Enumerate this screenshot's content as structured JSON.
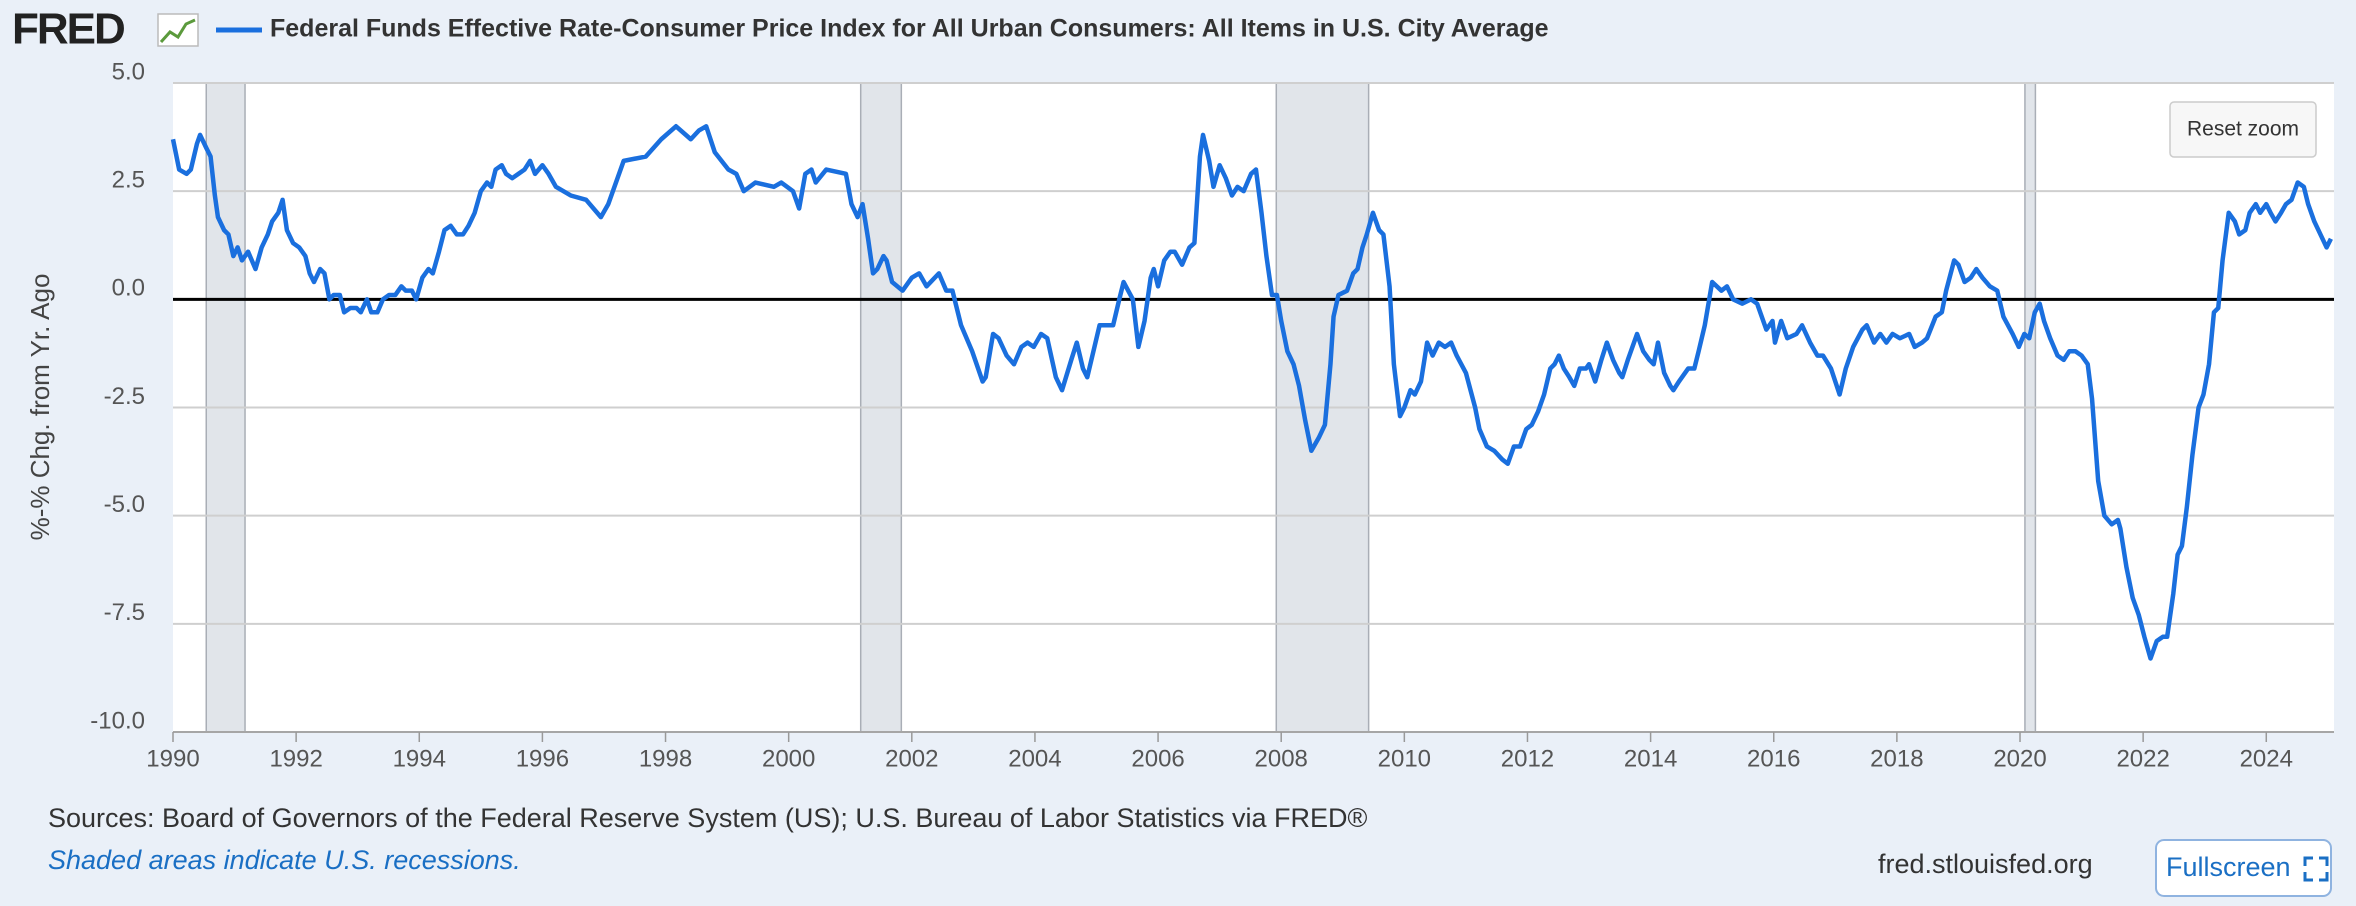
{
  "chart_data": {
    "type": "line",
    "logo": "FRED",
    "y_label": "%-% Chg. from Yr. Ago",
    "sources": "Sources: Board of Governors of the Federal Reserve System (US); U.S. Bureau of Labor Statistics via FRED®",
    "note": "Shaded areas indicate U.S. recessions.",
    "site": "fred.stlouisfed.org",
    "reset_button": "Reset zoom",
    "fullscreen_button": "Fullscreen",
    "grid": true,
    "zero_line": true,
    "recession_color": "#e1e5ea",
    "recessions": [
      [
        1990.54,
        1991.17
      ],
      [
        2001.17,
        2001.83
      ],
      [
        2007.92,
        2009.42
      ],
      [
        2020.08,
        2020.25
      ]
    ],
    "xlim": [
      1990,
      2025.1
    ],
    "xticks": [
      1990,
      1992,
      1994,
      1996,
      1998,
      2000,
      2002,
      2004,
      2006,
      2008,
      2010,
      2012,
      2014,
      2016,
      2018,
      2020,
      2022,
      2024
    ],
    "ylim": [
      -10,
      5
    ],
    "yticks": [
      {
        "value": 5,
        "label": "5.0"
      },
      {
        "value": 2.5,
        "label": "2.5"
      },
      {
        "value": 0,
        "label": "0.0"
      },
      {
        "value": -2.5,
        "label": "-2.5"
      },
      {
        "value": -5,
        "label": "-5.0"
      },
      {
        "value": -7.5,
        "label": "-7.5"
      },
      {
        "value": -10,
        "label": "-10.0"
      }
    ],
    "x": [
      1990.0,
      1990.1,
      1990.22,
      1990.29,
      1990.39,
      1990.44,
      1990.54,
      1990.61,
      1990.68,
      1990.73,
      1990.83,
      1990.9,
      1990.98,
      1991.05,
      1991.12,
      1991.22,
      1991.34,
      1991.44,
      1991.54,
      1991.61,
      1991.71,
      1991.78,
      1991.85,
      1991.95,
      1992.05,
      1992.15,
      1992.22,
      1992.29,
      1992.39,
      1992.46,
      1992.54,
      1992.61,
      1992.71,
      1992.78,
      1992.88,
      1992.98,
      1993.05,
      1993.15,
      1993.22,
      1993.32,
      1993.41,
      1993.51,
      1993.61,
      1993.71,
      1993.78,
      1993.88,
      1993.95,
      1994.05,
      1994.15,
      1994.22,
      1994.32,
      1994.41,
      1994.51,
      1994.61,
      1994.71,
      1994.8,
      1994.9,
      1995.0,
      1995.1,
      1995.17,
      1995.24,
      1995.34,
      1995.41,
      1995.51,
      1995.61,
      1995.71,
      1995.8,
      1995.88,
      1996.0,
      1996.1,
      1996.22,
      1996.46,
      1996.71,
      1996.95,
      1997.07,
      1997.32,
      1997.68,
      1997.93,
      1998.17,
      1998.41,
      1998.54,
      1998.66,
      1998.8,
      1999.02,
      1999.15,
      1999.27,
      1999.46,
      1999.76,
      1999.88,
      2000.07,
      2000.17,
      2000.27,
      2000.37,
      2000.44,
      2000.61,
      2000.93,
      2001.02,
      2001.12,
      2001.2,
      2001.29,
      2001.37,
      2001.44,
      2001.54,
      2001.59,
      2001.68,
      2001.85,
      2002.0,
      2002.12,
      2002.24,
      2002.44,
      2002.56,
      2002.66,
      2002.8,
      2002.98,
      2003.15,
      2003.2,
      2003.32,
      2003.41,
      2003.54,
      2003.66,
      2003.78,
      2003.88,
      2003.98,
      2004.1,
      2004.2,
      2004.34,
      2004.44,
      2004.59,
      2004.68,
      2004.78,
      2004.85,
      2004.95,
      2005.05,
      2005.27,
      2005.37,
      2005.44,
      2005.59,
      2005.68,
      2005.78,
      2005.88,
      2005.93,
      2006.0,
      2006.1,
      2006.2,
      2006.27,
      2006.39,
      2006.51,
      2006.59,
      2006.68,
      2006.73,
      2006.83,
      2006.9,
      2007.0,
      2007.1,
      2007.2,
      2007.29,
      2007.39,
      2007.51,
      2007.59,
      2007.68,
      2007.76,
      2007.85,
      2007.93,
      2008.0,
      2008.1,
      2008.2,
      2008.29,
      2008.39,
      2008.49,
      2008.61,
      2008.71,
      2008.8,
      2008.85,
      2008.93,
      2009.07,
      2009.17,
      2009.24,
      2009.32,
      2009.39,
      2009.49,
      2009.59,
      2009.66,
      2009.76,
      2009.83,
      2009.93,
      2010.0,
      2010.1,
      2010.17,
      2010.27,
      2010.37,
      2010.46,
      2010.56,
      2010.66,
      2010.76,
      2010.85,
      2011.0,
      2011.15,
      2011.22,
      2011.34,
      2011.46,
      2011.59,
      2011.68,
      2011.78,
      2011.88,
      2011.98,
      2012.07,
      2012.17,
      2012.27,
      2012.37,
      2012.44,
      2012.51,
      2012.59,
      2012.68,
      2012.76,
      2012.85,
      2012.95,
      2013.0,
      2013.1,
      2013.2,
      2013.29,
      2013.39,
      2013.49,
      2013.54,
      2013.63,
      2013.73,
      2013.78,
      2013.88,
      2013.98,
      2014.05,
      2014.12,
      2014.22,
      2014.32,
      2014.37,
      2014.46,
      2014.61,
      2014.71,
      2014.78,
      2014.88,
      2015.0,
      2015.15,
      2015.24,
      2015.34,
      2015.49,
      2015.63,
      2015.73,
      2015.88,
      2015.98,
      2016.02,
      2016.12,
      2016.22,
      2016.37,
      2016.46,
      2016.59,
      2016.71,
      2016.8,
      2016.93,
      2017.07,
      2017.17,
      2017.29,
      2017.44,
      2017.51,
      2017.63,
      2017.73,
      2017.83,
      2017.93,
      2018.05,
      2018.2,
      2018.29,
      2018.41,
      2018.49,
      2018.63,
      2018.73,
      2018.8,
      2018.93,
      2019.0,
      2019.1,
      2019.2,
      2019.29,
      2019.39,
      2019.51,
      2019.63,
      2019.73,
      2019.88,
      2019.98,
      2020.07,
      2020.15,
      2020.24,
      2020.32,
      2020.39,
      2020.49,
      2020.61,
      2020.71,
      2020.8,
      2020.9,
      2021.0,
      2021.1,
      2021.17,
      2021.27,
      2021.37,
      2021.49,
      2021.59,
      2021.63,
      2021.73,
      2021.83,
      2021.93,
      2022.02,
      2022.12,
      2022.22,
      2022.32,
      2022.39,
      2022.49,
      2022.56,
      2022.63,
      2022.71,
      2022.8,
      2022.9,
      2022.98,
      2023.07,
      2023.15,
      2023.22,
      2023.29,
      2023.39,
      2023.49,
      2023.56,
      2023.66,
      2023.73,
      2023.83,
      2023.9,
      2024.0,
      2024.07,
      2024.15,
      2024.24,
      2024.32,
      2024.41,
      2024.51,
      2024.61,
      2024.68,
      2024.78,
      2024.88,
      2024.98,
      2025.05
    ],
    "series": [
      {
        "name": "Federal Funds Effective Rate-Consumer Price Index for All Urban Consumers: All Items in U.S. City Average",
        "color": "#1a6fde",
        "values": [
          3.7,
          3.0,
          2.9,
          3.0,
          3.6,
          3.8,
          3.5,
          3.3,
          2.4,
          1.9,
          1.6,
          1.5,
          1.0,
          1.2,
          0.9,
          1.1,
          0.7,
          1.2,
          1.5,
          1.8,
          2.0,
          2.3,
          1.6,
          1.3,
          1.2,
          1.0,
          0.6,
          0.4,
          0.7,
          0.6,
          0.0,
          0.1,
          0.1,
          -0.3,
          -0.2,
          -0.2,
          -0.3,
          0.0,
          -0.3,
          -0.3,
          0.0,
          0.1,
          0.1,
          0.3,
          0.2,
          0.2,
          0.0,
          0.5,
          0.7,
          0.6,
          1.1,
          1.6,
          1.7,
          1.5,
          1.5,
          1.7,
          2.0,
          2.5,
          2.7,
          2.6,
          3.0,
          3.1,
          2.9,
          2.8,
          2.9,
          3.0,
          3.2,
          2.9,
          3.1,
          2.9,
          2.6,
          2.4,
          2.3,
          1.9,
          2.2,
          3.2,
          3.3,
          3.7,
          4.0,
          3.7,
          3.9,
          4.0,
          3.4,
          3.0,
          2.9,
          2.5,
          2.7,
          2.6,
          2.7,
          2.5,
          2.1,
          2.9,
          3.0,
          2.7,
          3.0,
          2.9,
          2.2,
          1.9,
          2.2,
          1.4,
          0.6,
          0.7,
          1.0,
          0.9,
          0.4,
          0.2,
          0.5,
          0.6,
          0.3,
          0.6,
          0.2,
          0.2,
          -0.6,
          -1.2,
          -1.9,
          -1.8,
          -0.8,
          -0.9,
          -1.3,
          -1.5,
          -1.1,
          -1.0,
          -1.1,
          -0.8,
          -0.9,
          -1.8,
          -2.1,
          -1.4,
          -1.0,
          -1.6,
          -1.8,
          -1.2,
          -0.6,
          -0.6,
          0.0,
          0.4,
          0.0,
          -1.1,
          -0.5,
          0.5,
          0.7,
          0.3,
          0.9,
          1.1,
          1.1,
          0.8,
          1.2,
          1.3,
          3.3,
          3.8,
          3.2,
          2.6,
          3.1,
          2.8,
          2.4,
          2.6,
          2.5,
          2.9,
          3.0,
          2.0,
          1.0,
          0.1,
          0.1,
          -0.5,
          -1.2,
          -1.5,
          -2.0,
          -2.8,
          -3.5,
          -3.2,
          -2.9,
          -1.5,
          -0.4,
          0.1,
          0.2,
          0.6,
          0.7,
          1.2,
          1.5,
          2.0,
          1.6,
          1.5,
          0.3,
          -1.5,
          -2.7,
          -2.5,
          -2.1,
          -2.2,
          -1.9,
          -1.0,
          -1.3,
          -1.0,
          -1.1,
          -1.0,
          -1.3,
          -1.7,
          -2.5,
          -3.0,
          -3.4,
          -3.5,
          -3.7,
          -3.8,
          -3.4,
          -3.4,
          -3.0,
          -2.9,
          -2.6,
          -2.2,
          -1.6,
          -1.5,
          -1.3,
          -1.6,
          -1.8,
          -2.0,
          -1.6,
          -1.6,
          -1.5,
          -1.9,
          -1.4,
          -1.0,
          -1.4,
          -1.7,
          -1.8,
          -1.4,
          -1.0,
          -0.8,
          -1.2,
          -1.4,
          -1.5,
          -1.0,
          -1.7,
          -2.0,
          -2.1,
          -1.9,
          -1.6,
          -1.6,
          -1.2,
          -0.6,
          0.4,
          0.2,
          0.3,
          0.0,
          -0.1,
          0.0,
          -0.1,
          -0.7,
          -0.5,
          -1.0,
          -0.5,
          -0.9,
          -0.8,
          -0.6,
          -1.0,
          -1.3,
          -1.3,
          -1.6,
          -2.2,
          -1.6,
          -1.1,
          -0.7,
          -0.6,
          -1.0,
          -0.8,
          -1.0,
          -0.8,
          -0.9,
          -0.8,
          -1.1,
          -1.0,
          -0.9,
          -0.4,
          -0.3,
          0.2,
          0.9,
          0.8,
          0.4,
          0.5,
          0.7,
          0.5,
          0.3,
          0.2,
          -0.4,
          -0.8,
          -1.1,
          -0.8,
          -0.9,
          -0.3,
          -0.1,
          -0.5,
          -0.9,
          -1.3,
          -1.4,
          -1.2,
          -1.2,
          -1.3,
          -1.5,
          -2.3,
          -4.2,
          -5.0,
          -5.2,
          -5.1,
          -5.3,
          -6.2,
          -6.9,
          -7.3,
          -7.8,
          -8.3,
          -7.9,
          -7.8,
          -7.8,
          -6.8,
          -5.9,
          -5.7,
          -4.8,
          -3.6,
          -2.5,
          -2.2,
          -1.5,
          -0.3,
          -0.2,
          0.9,
          2.0,
          1.8,
          1.5,
          1.6,
          2.0,
          2.2,
          2.0,
          2.2,
          2.0,
          1.8,
          2.0,
          2.2,
          2.3,
          2.7,
          2.6,
          2.2,
          1.8,
          1.5,
          1.2,
          1.4
        ]
      }
    ]
  }
}
